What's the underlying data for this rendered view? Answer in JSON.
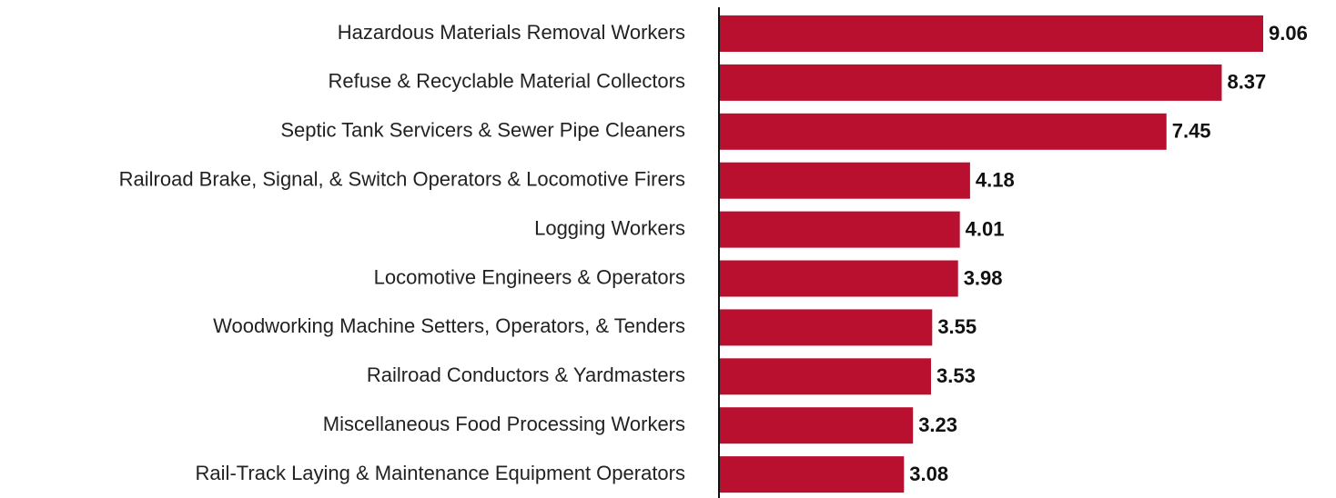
{
  "chart_data": {
    "type": "bar",
    "orientation": "horizontal",
    "categories": [
      "Hazardous Materials Removal Workers",
      "Refuse & Recyclable Material Collectors",
      "Septic Tank Servicers & Sewer Pipe Cleaners",
      "Railroad Brake, Signal, & Switch Operators & Locomotive Firers",
      "Logging Workers",
      "Locomotive Engineers & Operators",
      "Woodworking Machine Setters, Operators, & Tenders",
      "Railroad Conductors & Yardmasters",
      "Miscellaneous Food Processing Workers",
      "Rail-Track Laying & Maintenance Equipment Operators"
    ],
    "values": [
      9.06,
      8.37,
      7.45,
      4.18,
      4.01,
      3.98,
      3.55,
      3.53,
      3.23,
      3.08
    ],
    "color": "#b91030"
  }
}
